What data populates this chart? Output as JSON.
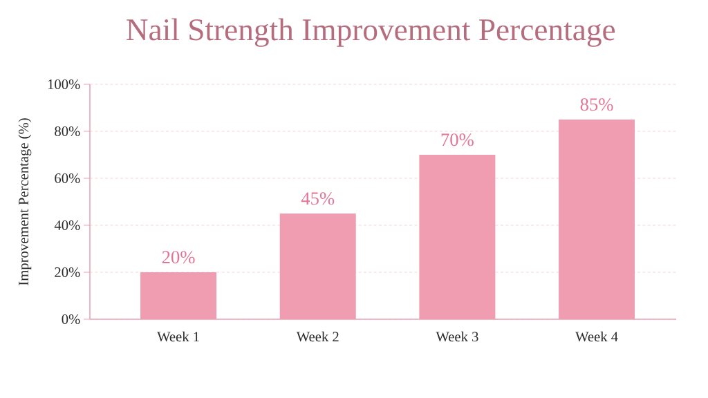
{
  "chart_data": {
    "type": "bar",
    "title": "Nail Strength Improvement Percentage",
    "ylabel": "Improvement Percentage (%)",
    "categories": [
      "Week 1",
      "Week 2",
      "Week 3",
      "Week 4"
    ],
    "values": [
      20,
      45,
      70,
      85
    ],
    "color": "#f09cb1",
    "value_labels": [
      "20%",
      "45%",
      "70%",
      "85%"
    ],
    "ylim": [
      0,
      100
    ],
    "yticks": [
      {
        "value": 0,
        "label": "0%"
      },
      {
        "value": 20,
        "label": "20%"
      },
      {
        "value": 40,
        "label": "40%"
      },
      {
        "value": 60,
        "label": "60%"
      },
      {
        "value": 80,
        "label": "80%"
      },
      {
        "value": 100,
        "label": "100%"
      }
    ],
    "grid": "y"
  }
}
